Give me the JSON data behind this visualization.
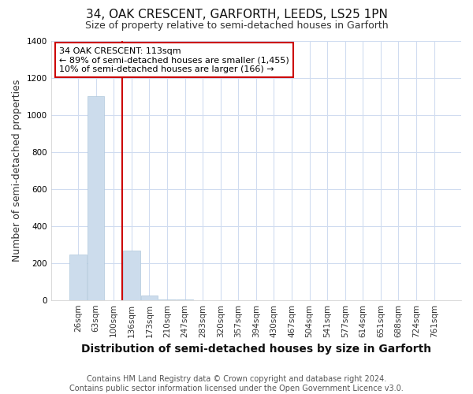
{
  "title": "34, OAK CRESCENT, GARFORTH, LEEDS, LS25 1PN",
  "subtitle": "Size of property relative to semi-detached houses in Garforth",
  "xlabel": "Distribution of semi-detached houses by size in Garforth",
  "ylabel": "Number of semi-detached properties",
  "footnote": "Contains HM Land Registry data © Crown copyright and database right 2024.\nContains public sector information licensed under the Open Government Licence v3.0.",
  "categories": [
    "26sqm",
    "63sqm",
    "100sqm",
    "136sqm",
    "173sqm",
    "210sqm",
    "247sqm",
    "283sqm",
    "320sqm",
    "357sqm",
    "394sqm",
    "430sqm",
    "467sqm",
    "504sqm",
    "541sqm",
    "577sqm",
    "614sqm",
    "651sqm",
    "688sqm",
    "724sqm",
    "761sqm"
  ],
  "values": [
    245,
    1100,
    0,
    265,
    25,
    5,
    2,
    0,
    0,
    0,
    0,
    0,
    0,
    0,
    0,
    0,
    0,
    0,
    0,
    0,
    0
  ],
  "bar_color": "#ccdcec",
  "bar_edge_color": "#b0c8dc",
  "property_line_x": 2.5,
  "annotation_line1": "34 OAK CRESCENT: 113sqm",
  "annotation_line2": "← 89% of semi-detached houses are smaller (1,455)",
  "annotation_line3": "10% of semi-detached houses are larger (166) →",
  "annotation_box_facecolor": "#ffffff",
  "annotation_box_edgecolor": "#cc0000",
  "red_line_color": "#cc0000",
  "ylim": [
    0,
    1400
  ],
  "yticks": [
    0,
    200,
    400,
    600,
    800,
    1000,
    1200,
    1400
  ],
  "background_color": "#ffffff",
  "grid_color": "#d0dcf0",
  "title_fontsize": 11,
  "subtitle_fontsize": 9,
  "axis_label_fontsize": 9,
  "tick_fontsize": 7.5,
  "footnote_fontsize": 7
}
